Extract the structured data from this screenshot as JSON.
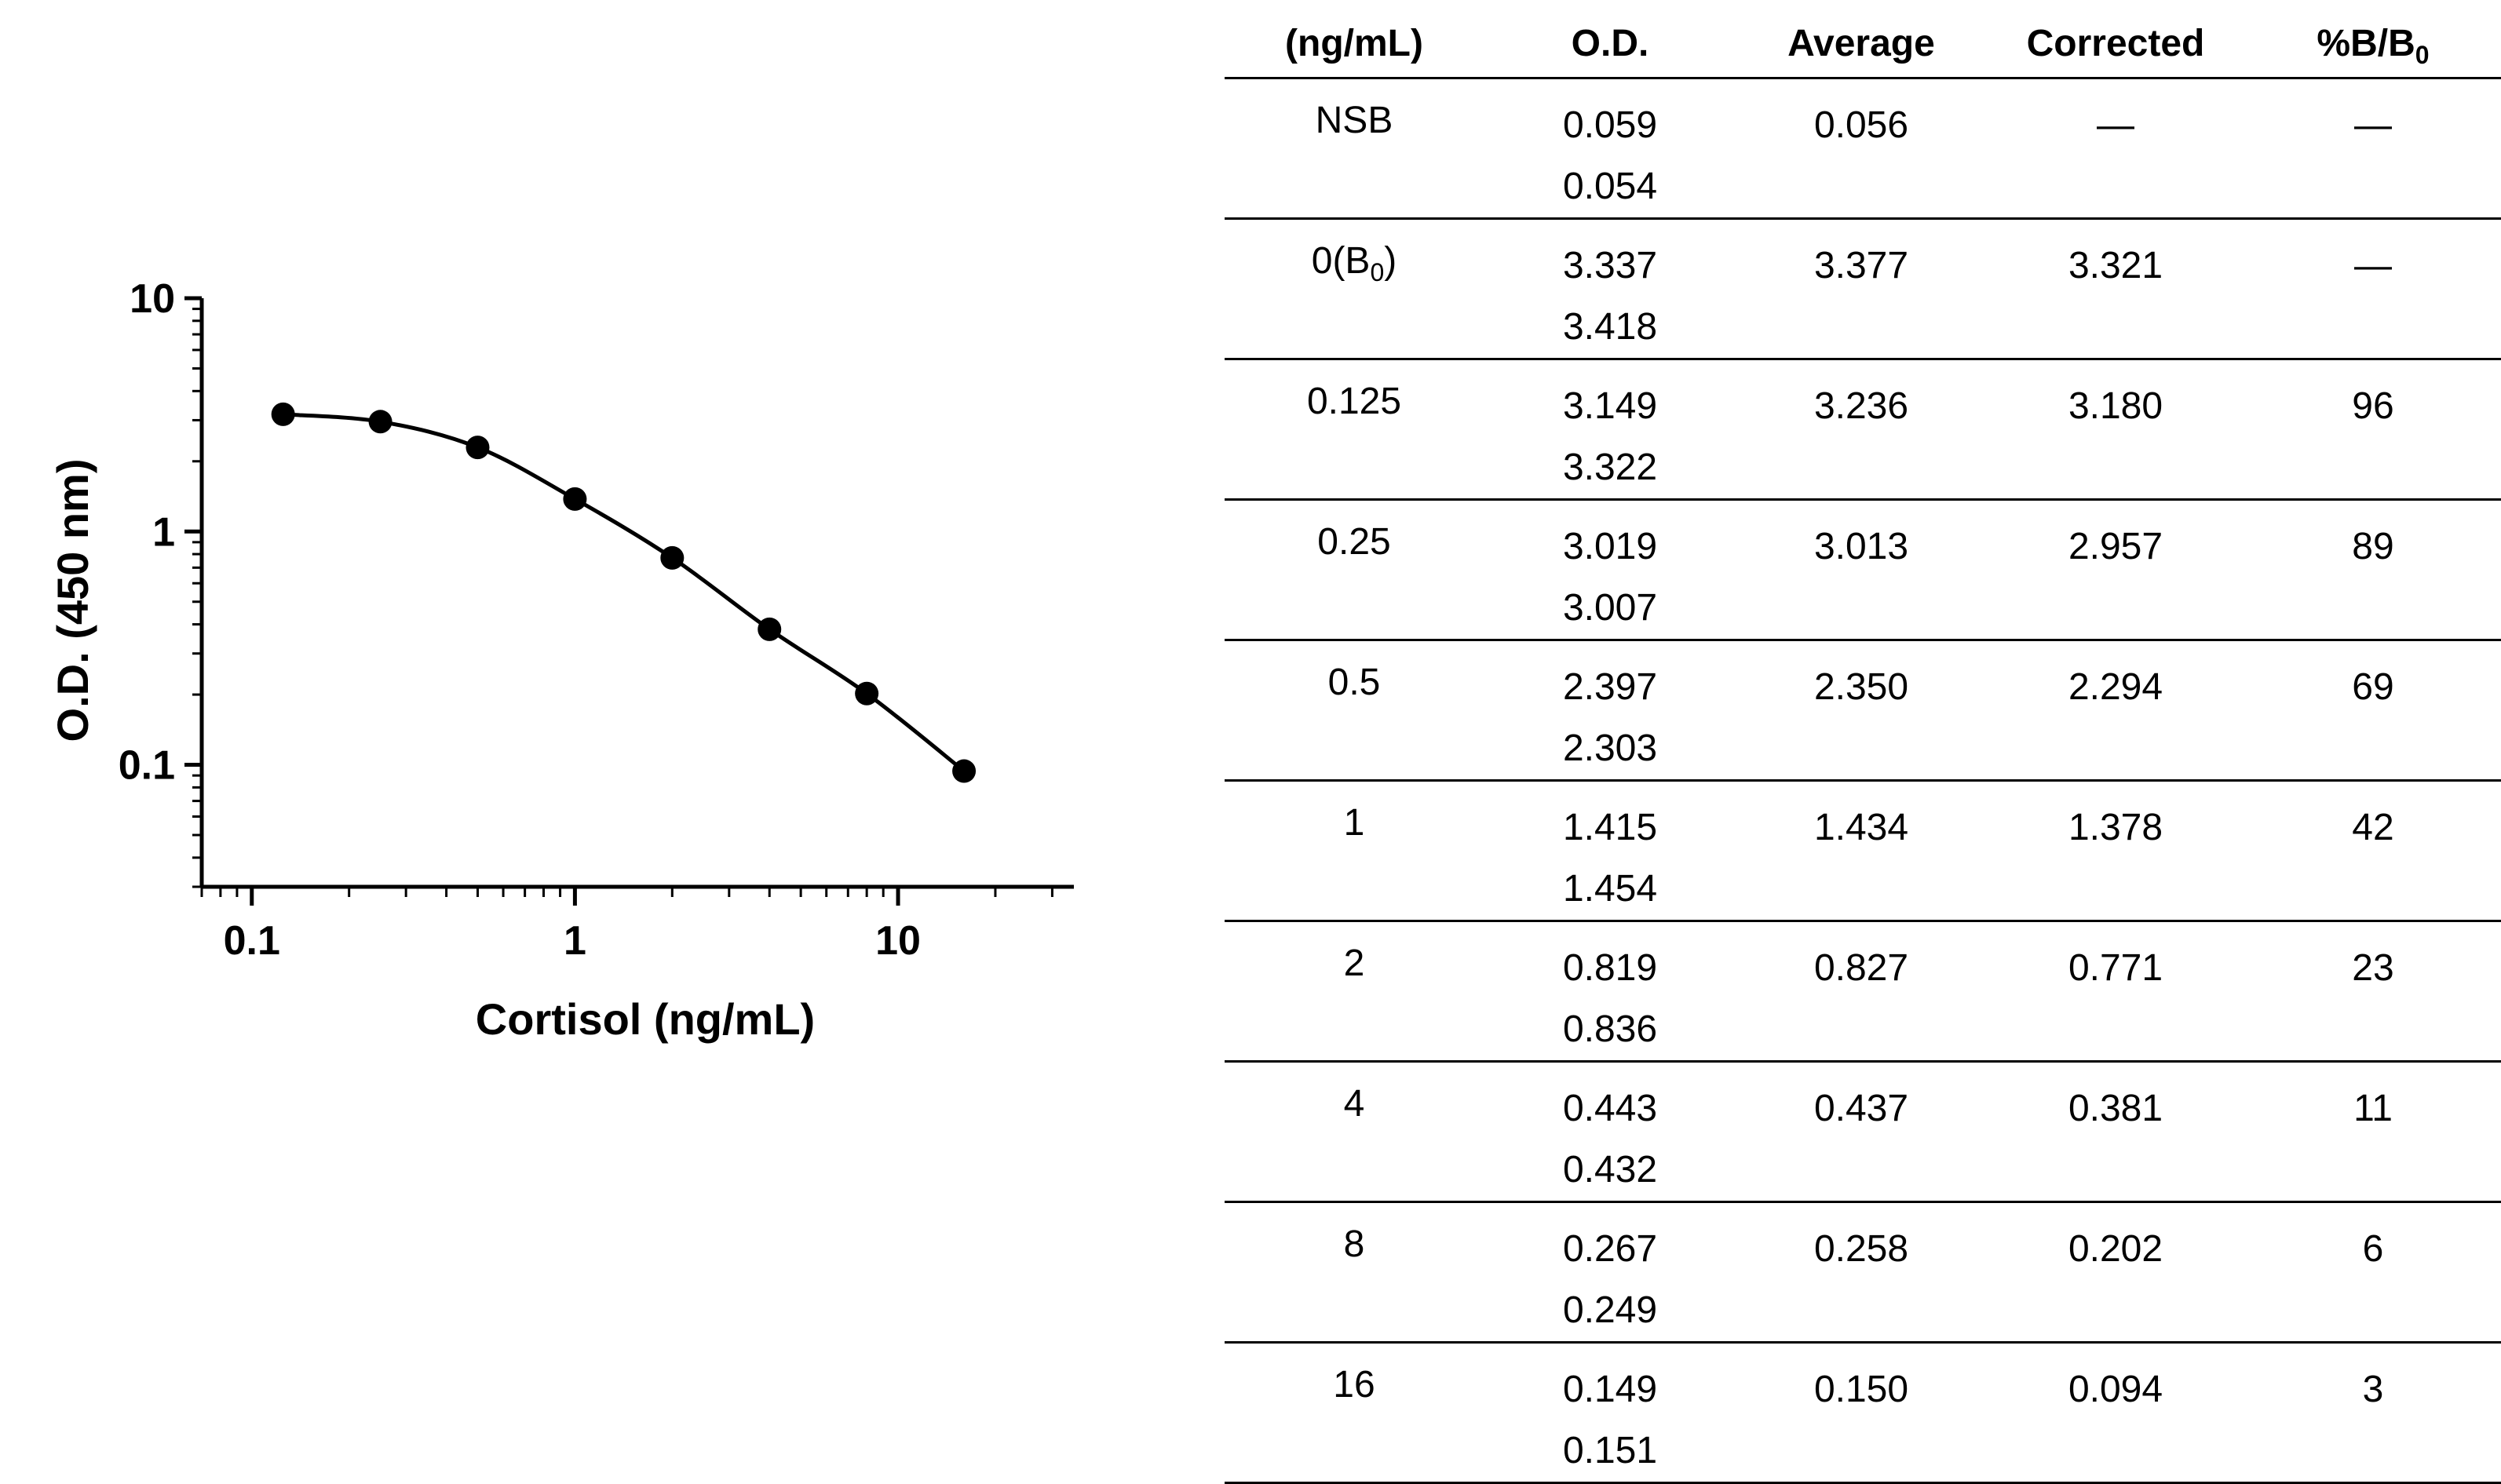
{
  "chart_data": {
    "type": "scatter",
    "x_scale": "log",
    "y_scale": "log",
    "xlabel": "Cortisol (ng/mL)",
    "ylabel": "O.D. (450 nm)",
    "xlim": [
      0.07,
      35
    ],
    "ylim": [
      0.03,
      10
    ],
    "x_ticks": [
      {
        "value": 0.1,
        "label": "0.1"
      },
      {
        "value": 1,
        "label": "1"
      },
      {
        "value": 10,
        "label": "10"
      }
    ],
    "y_ticks": [
      {
        "value": 0.1,
        "label": "0.1"
      },
      {
        "value": 1,
        "label": "1"
      },
      {
        "value": 10,
        "label": "10"
      }
    ],
    "series": [
      {
        "x": [
          0.125,
          0.25,
          0.5,
          1,
          2,
          4,
          8,
          16
        ],
        "y": [
          3.18,
          2.957,
          2.294,
          1.378,
          0.771,
          0.381,
          0.202,
          0.094
        ],
        "fit": "4PL curve"
      }
    ],
    "grid": false,
    "legend": "none"
  },
  "table": {
    "headers": [
      "(ng/mL)",
      "O.D.",
      "Average",
      "Corrected",
      "%B/B0"
    ],
    "rows": [
      {
        "conc": "NSB",
        "od1": "0.059",
        "od2": "0.054",
        "average": "0.056",
        "corrected": "—",
        "pct": "—"
      },
      {
        "conc": "0(B0)",
        "od1": "3.337",
        "od2": "3.418",
        "average": "3.377",
        "corrected": "3.321",
        "pct": "—"
      },
      {
        "conc": "0.125",
        "od1": "3.149",
        "od2": "3.322",
        "average": "3.236",
        "corrected": "3.180",
        "pct": "96"
      },
      {
        "conc": "0.25",
        "od1": "3.019",
        "od2": "3.007",
        "average": "3.013",
        "corrected": "2.957",
        "pct": "89"
      },
      {
        "conc": "0.5",
        "od1": "2.397",
        "od2": "2.303",
        "average": "2.350",
        "corrected": "2.294",
        "pct": "69"
      },
      {
        "conc": "1",
        "od1": "1.415",
        "od2": "1.454",
        "average": "1.434",
        "corrected": "1.378",
        "pct": "42"
      },
      {
        "conc": "2",
        "od1": "0.819",
        "od2": "0.836",
        "average": "0.827",
        "corrected": "0.771",
        "pct": "23"
      },
      {
        "conc": "4",
        "od1": "0.443",
        "od2": "0.432",
        "average": "0.437",
        "corrected": "0.381",
        "pct": "11"
      },
      {
        "conc": "8",
        "od1": "0.267",
        "od2": "0.249",
        "average": "0.258",
        "corrected": "0.202",
        "pct": "6"
      },
      {
        "conc": "16",
        "od1": "0.149",
        "od2": "0.151",
        "average": "0.150",
        "corrected": "0.094",
        "pct": "3"
      }
    ]
  }
}
